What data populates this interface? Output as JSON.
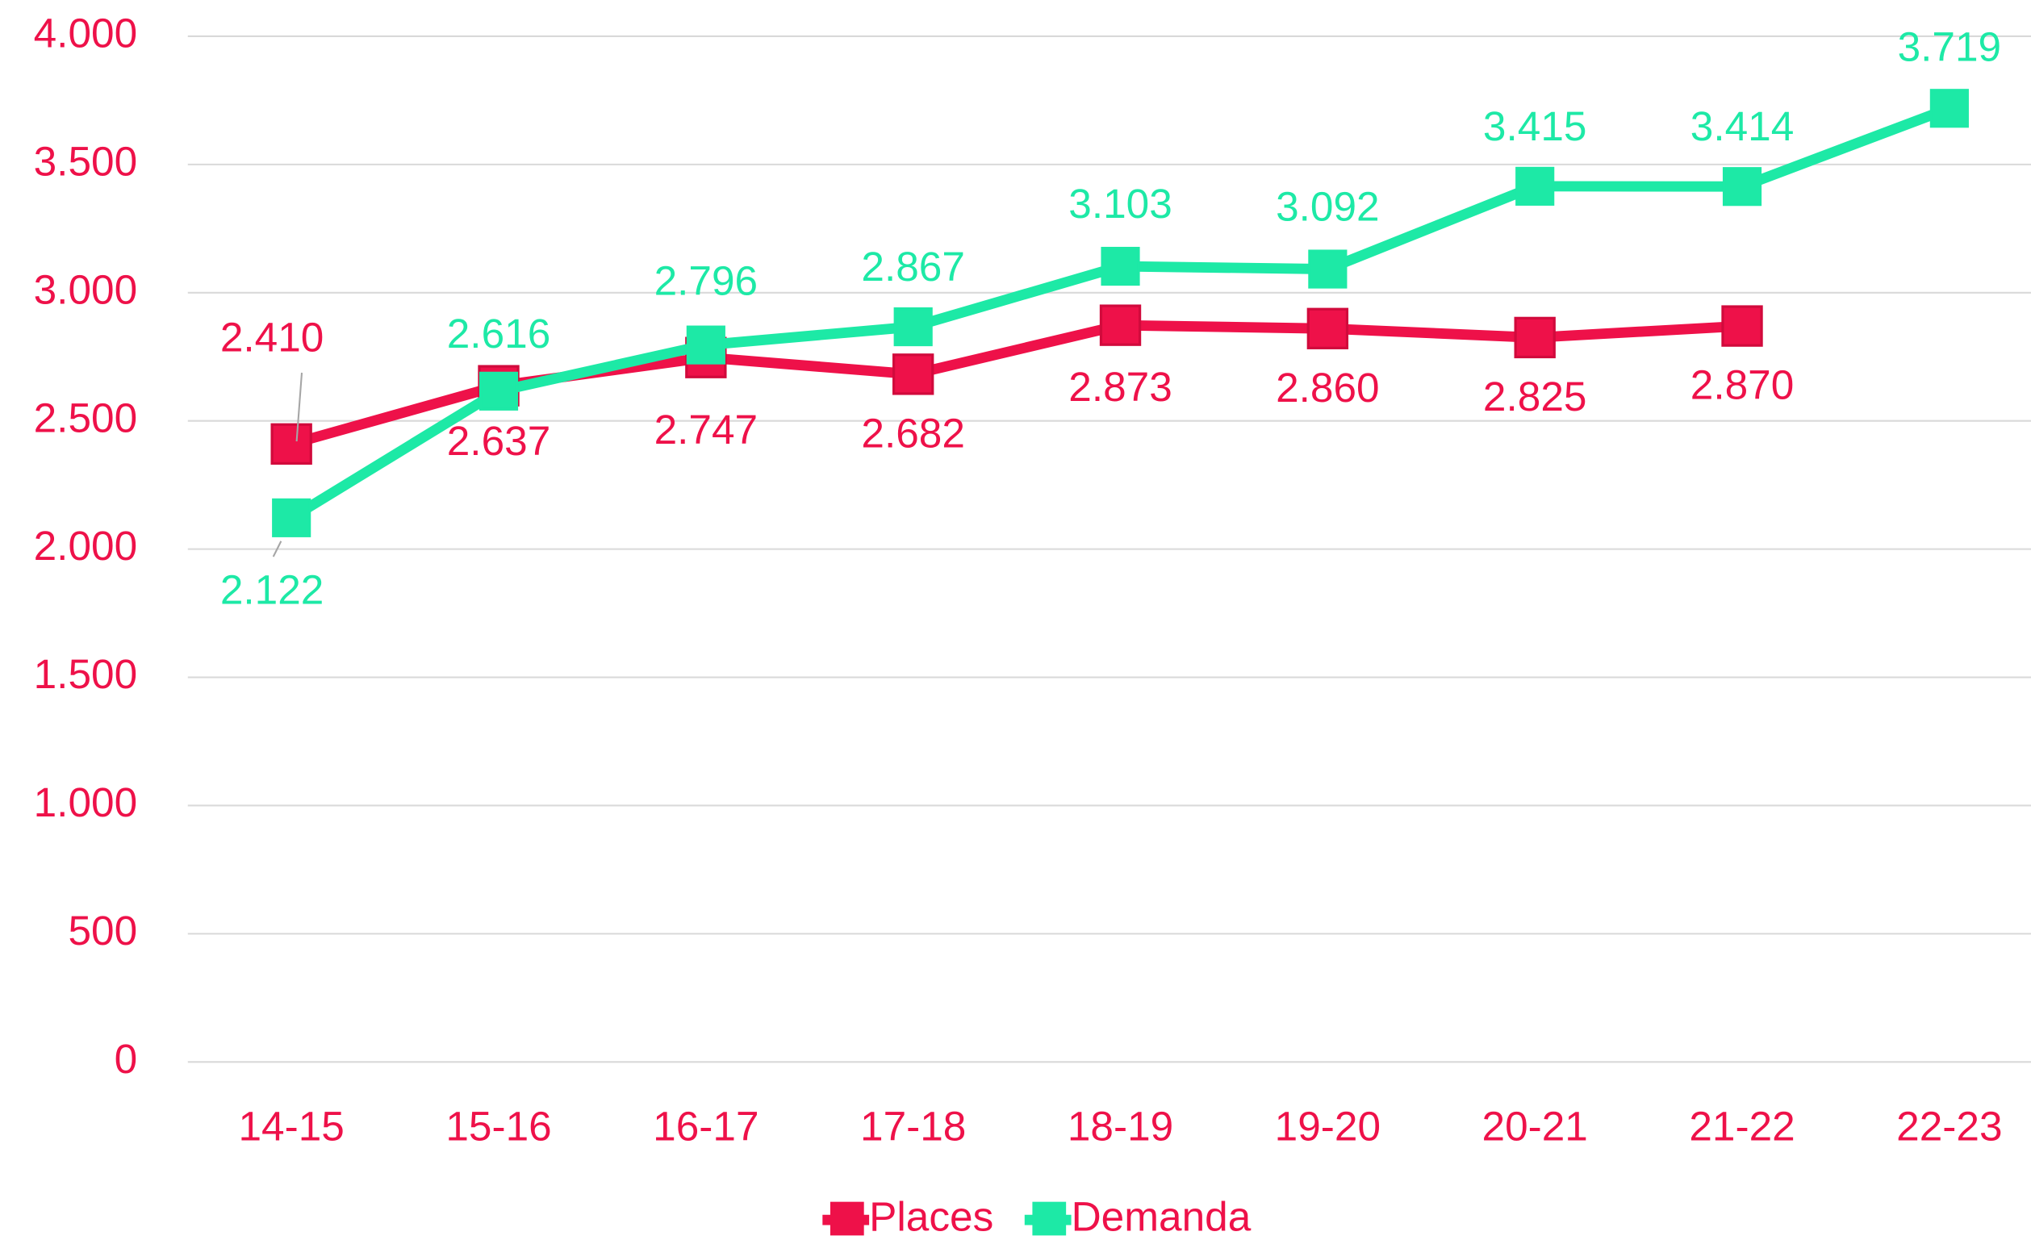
{
  "chart_data": {
    "type": "line",
    "categories": [
      "14-15",
      "15-16",
      "16-17",
      "17-18",
      "18-19",
      "19-20",
      "20-21",
      "21-22",
      "22-23"
    ],
    "series": [
      {
        "name": "Places",
        "color": "#ee1149",
        "values": [
          2410,
          2637,
          2747,
          2682,
          2873,
          2860,
          2825,
          2870,
          null
        ],
        "value_labels": [
          "2.410",
          "2.637",
          "2.747",
          "2.682",
          "2.873",
          "2.860",
          "2.825",
          "2.870",
          null
        ]
      },
      {
        "name": "Demanda",
        "color": "#1de9a6",
        "values": [
          2122,
          2616,
          2796,
          2867,
          3103,
          3092,
          3415,
          3414,
          3719
        ],
        "value_labels": [
          "2.122",
          "2.616",
          "2.796",
          "2.867",
          "3.103",
          "3.092",
          "3.415",
          "3.414",
          "3.719"
        ]
      }
    ],
    "ylim": [
      0,
      4000
    ],
    "yticks": [
      {
        "value": 0,
        "label": "0"
      },
      {
        "value": 500,
        "label": "500"
      },
      {
        "value": 1000,
        "label": "1.000"
      },
      {
        "value": 1500,
        "label": "1.500"
      },
      {
        "value": 2000,
        "label": "2.000"
      },
      {
        "value": 2500,
        "label": "2.500"
      },
      {
        "value": 3000,
        "label": "3.000"
      },
      {
        "value": 3500,
        "label": "3.500"
      },
      {
        "value": 4000,
        "label": "4.000"
      }
    ],
    "grid": true,
    "legend": "bottom"
  }
}
